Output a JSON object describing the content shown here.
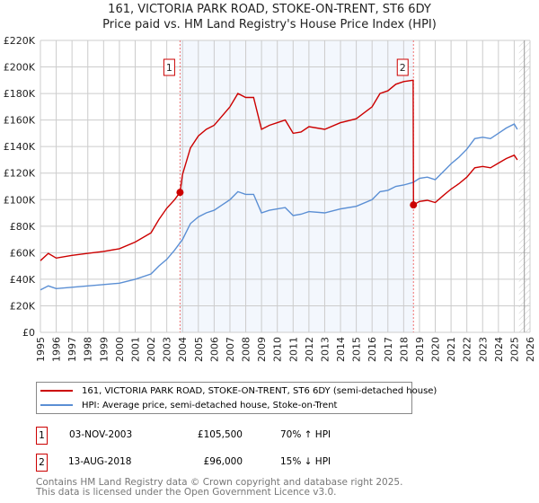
{
  "chart_data": {
    "type": "line",
    "title": "161, VICTORIA PARK ROAD, STOKE-ON-TRENT, ST6 6DY",
    "subtitle": "Price paid vs. HM Land Registry's House Price Index (HPI)",
    "xlim": [
      1995,
      2026
    ],
    "ylim": [
      0,
      220000
    ],
    "x_ticks": [
      "1995",
      "1996",
      "1997",
      "1998",
      "1999",
      "2000",
      "2001",
      "2002",
      "2003",
      "2004",
      "2005",
      "2006",
      "2007",
      "2008",
      "2009",
      "2010",
      "2011",
      "2012",
      "2013",
      "2014",
      "2015",
      "2016",
      "2017",
      "2018",
      "2019",
      "2020",
      "2021",
      "2022",
      "2023",
      "2024",
      "2025",
      "2026"
    ],
    "y_ticks": [
      "£0",
      "£20K",
      "£40K",
      "£60K",
      "£80K",
      "£100K",
      "£120K",
      "£140K",
      "£160K",
      "£180K",
      "£200K",
      "£220K"
    ],
    "grid": true,
    "shaded_range": [
      2003.84,
      2018.62
    ],
    "hatched_from": 2025.3,
    "series": [
      {
        "name": "161, VICTORIA PARK ROAD, STOKE-ON-TRENT, ST6 6DY (semi-detached house)",
        "color": "#cc0000",
        "x": [
          1995,
          1995.5,
          1996,
          1997,
          1998,
          1999,
          2000,
          2001,
          2002,
          2002.5,
          2003,
          2003.5,
          2003.84,
          2004,
          2004.5,
          2005,
          2005.5,
          2006,
          2006.5,
          2007,
          2007.5,
          2008,
          2008.5,
          2009,
          2009.5,
          2010,
          2010.5,
          2011,
          2011.5,
          2012,
          2013,
          2014,
          2015,
          2016,
          2016.5,
          2017,
          2017.5,
          2018,
          2018.6,
          2018.62,
          2019,
          2019.5,
          2020,
          2020.5,
          2021,
          2021.5,
          2022,
          2022.5,
          2023,
          2023.5,
          2024,
          2024.5,
          2025,
          2025.2
        ],
        "y": [
          54000,
          59500,
          56000,
          58000,
          59500,
          61000,
          63000,
          68000,
          75000,
          85000,
          93500,
          100000,
          105500,
          119000,
          139000,
          148000,
          153000,
          156000,
          163000,
          170000,
          180000,
          177000,
          177000,
          153000,
          156000,
          158000,
          160000,
          150000,
          151000,
          155000,
          153000,
          158000,
          161000,
          170000,
          180000,
          182000,
          187000,
          189000,
          190000,
          96000,
          98600,
          99500,
          97800,
          103000,
          108000,
          112000,
          117000,
          124000,
          125000,
          124000,
          127500,
          131000,
          133500,
          130000
        ]
      },
      {
        "name": "HPI: Average price, semi-detached house, Stoke-on-Trent",
        "color": "#5b8fd4",
        "x": [
          1995,
          1995.5,
          1996,
          1997,
          1998,
          1999,
          2000,
          2001,
          2002,
          2002.5,
          2003,
          2003.5,
          2004,
          2004.5,
          2005,
          2005.5,
          2006,
          2006.5,
          2007,
          2007.5,
          2008,
          2008.5,
          2009,
          2009.5,
          2010,
          2010.5,
          2011,
          2011.5,
          2012,
          2013,
          2014,
          2015,
          2016,
          2016.5,
          2017,
          2017.5,
          2018,
          2018.6,
          2019,
          2019.5,
          2020,
          2020.5,
          2021,
          2021.5,
          2022,
          2022.5,
          2023,
          2023.5,
          2024,
          2024.5,
          2025,
          2025.2
        ],
        "y": [
          32000,
          35000,
          33000,
          34000,
          35000,
          36000,
          37000,
          40000,
          44000,
          50000,
          55000,
          62000,
          70000,
          82000,
          87000,
          90000,
          92000,
          96000,
          100000,
          106000,
          104000,
          104000,
          90000,
          92000,
          93000,
          94000,
          88000,
          89000,
          91000,
          90000,
          93000,
          95000,
          100000,
          106000,
          107000,
          110000,
          111000,
          113000,
          116000,
          117000,
          115000,
          121000,
          127000,
          132000,
          138000,
          146000,
          147000,
          146000,
          150000,
          154000,
          157000,
          153000
        ]
      }
    ],
    "annotations": [
      {
        "label": "1",
        "x": 2003.84,
        "y": 105500
      },
      {
        "label": "2",
        "x": 2018.62,
        "y": 96000
      }
    ]
  },
  "legend": {
    "items": [
      "161, VICTORIA PARK ROAD, STOKE-ON-TRENT, ST6 6DY (semi-detached house)",
      "HPI: Average price, semi-detached house, Stoke-on-Trent"
    ]
  },
  "transactions": [
    {
      "num": "1",
      "date": "03-NOV-2003",
      "price": "£105,500",
      "hpi": "70% ↑ HPI"
    },
    {
      "num": "2",
      "date": "13-AUG-2018",
      "price": "£96,000",
      "hpi": "15% ↓ HPI"
    }
  ],
  "footer": {
    "line1": "Contains HM Land Registry data © Crown copyright and database right 2025.",
    "line2": "This data is licensed under the Open Government Licence v3.0."
  }
}
